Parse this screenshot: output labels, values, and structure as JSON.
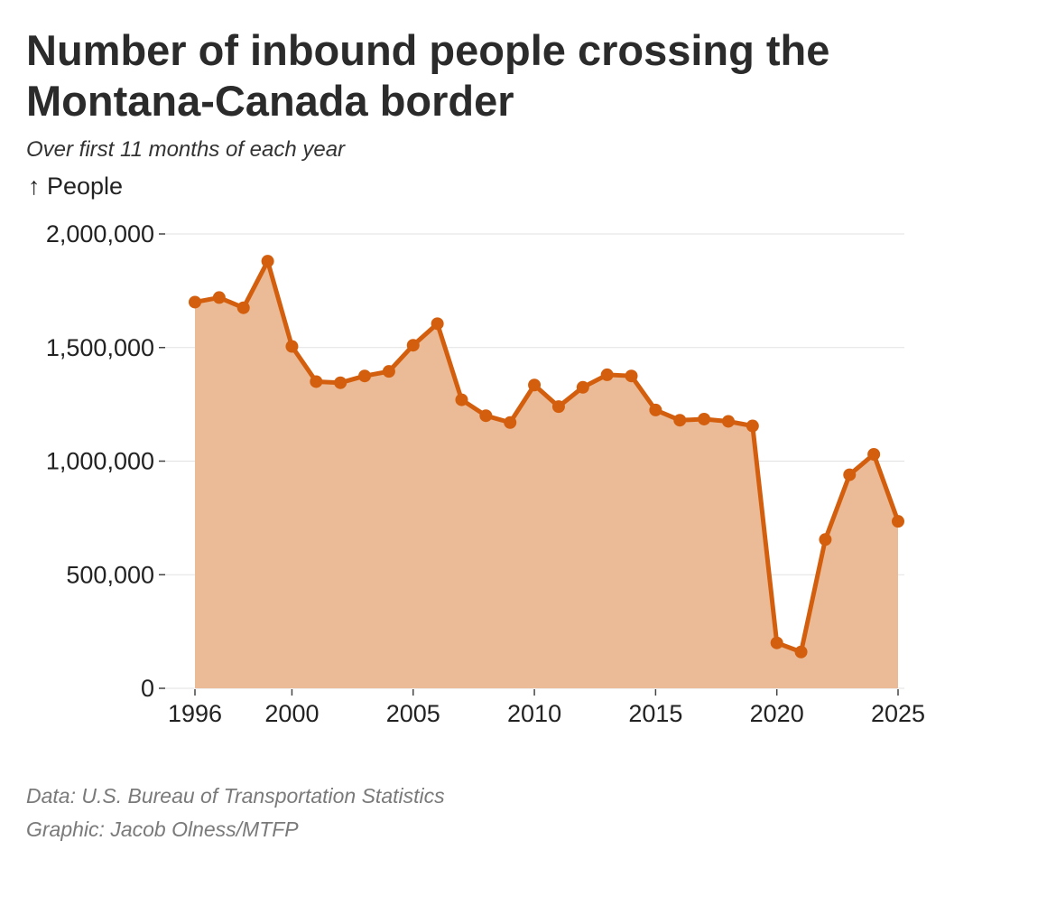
{
  "chart_data": {
    "type": "area",
    "title": "Number of inbound people crossing the Montana-Canada border",
    "subtitle": "Over first 11 months of each year",
    "ylabel": "↑ People",
    "xlabel": "",
    "xlim": [
      1996,
      2025
    ],
    "ylim": [
      0,
      2000000
    ],
    "x_ticks": [
      1996,
      2000,
      2005,
      2010,
      2015,
      2020,
      2025
    ],
    "y_ticks": [
      0,
      500000,
      1000000,
      1500000,
      2000000
    ],
    "y_tick_labels": [
      "0",
      "500,000",
      "1,000,000",
      "1,500,000",
      "2,000,000"
    ],
    "grid": "horizontal",
    "line_color": "#d35f0e",
    "fill_color": "#ebbb97",
    "series": [
      {
        "x": [
          1996,
          1997,
          1998,
          1999,
          2000,
          2001,
          2002,
          2003,
          2004,
          2005,
          2006,
          2007,
          2008,
          2009,
          2010,
          2011,
          2012,
          2013,
          2014,
          2015,
          2016,
          2017,
          2018,
          2019,
          2020,
          2021,
          2022,
          2023,
          2024,
          2025
        ],
        "values": [
          1700000,
          1720000,
          1675000,
          1880000,
          1505000,
          1350000,
          1345000,
          1375000,
          1395000,
          1510000,
          1605000,
          1270000,
          1200000,
          1170000,
          1335000,
          1240000,
          1325000,
          1380000,
          1375000,
          1225000,
          1180000,
          1185000,
          1175000,
          1155000,
          200000,
          160000,
          655000,
          940000,
          1030000,
          735000
        ]
      }
    ]
  },
  "source": {
    "data": "Data: U.S. Bureau of Transportation Statistics",
    "graphic": "Graphic: Jacob Olness/MTFP"
  }
}
